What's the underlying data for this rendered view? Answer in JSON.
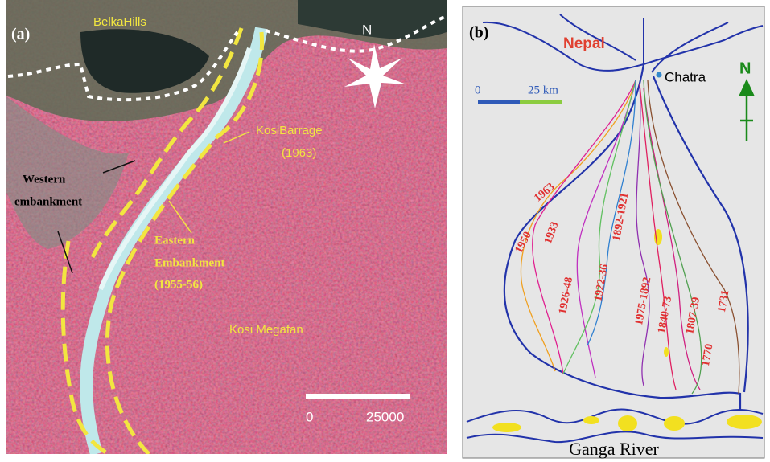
{
  "panel_a": {
    "label": "(a)",
    "hills": "BelkaHills",
    "north": "N",
    "barrage": "KosiBarrage",
    "barrage_year": "(1963)",
    "western": [
      "Western",
      "embankment"
    ],
    "eastern": [
      "Eastern",
      "Embankment",
      "(1955-56)"
    ],
    "megafan": "Kosi Megafan",
    "scale": [
      "0",
      "25000"
    ]
  },
  "panel_b": {
    "label": "(b)",
    "country": "Nepal",
    "town": "Chatra",
    "scale": [
      "0",
      "25 km"
    ],
    "north": "N",
    "river": "Ganga River",
    "years": [
      "1963",
      "1950",
      "1933",
      "1892-1921",
      "1926-48",
      "1922-36",
      "1975-1892",
      "1840-73",
      "1807-39",
      "1770",
      "1731"
    ]
  }
}
